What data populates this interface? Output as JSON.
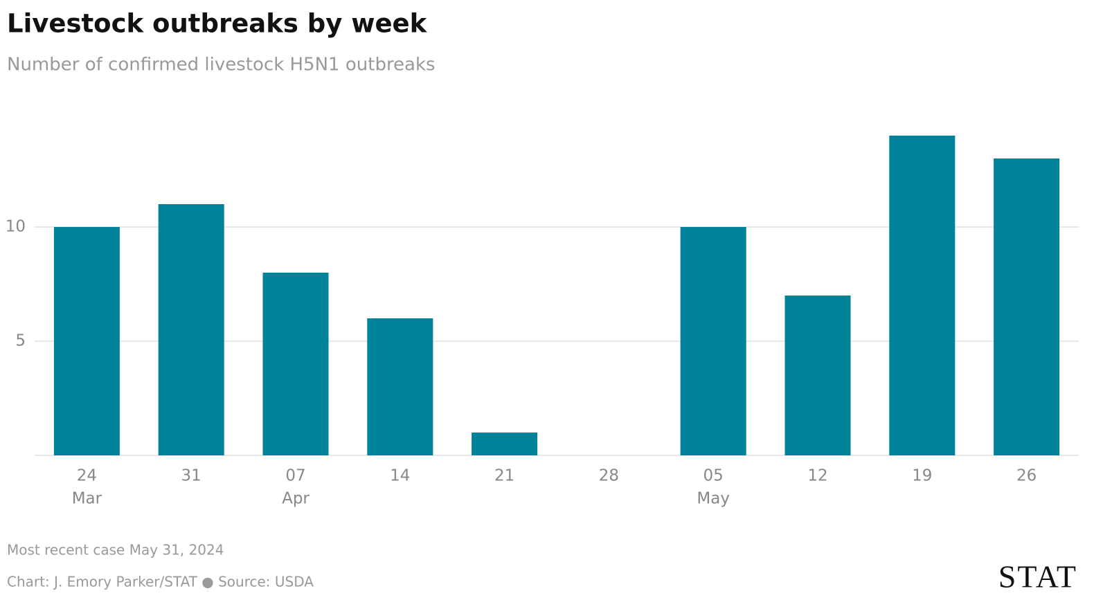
{
  "chart_data": {
    "type": "bar",
    "title": "Livestock outbreaks by week",
    "subtitle": "Number of confirmed livestock H5N1 outbreaks",
    "categories": [
      "24",
      "31",
      "07",
      "14",
      "21",
      "28",
      "05",
      "12",
      "19",
      "26"
    ],
    "month_labels": [
      "Mar",
      null,
      "Apr",
      null,
      null,
      null,
      "May",
      null,
      null,
      null
    ],
    "values": [
      10,
      11,
      8,
      6,
      1,
      0,
      10,
      7,
      14,
      13
    ],
    "color": "#008299",
    "ylim": [
      0,
      16
    ],
    "yticks": [
      5,
      10
    ],
    "grid": true,
    "note": "Most recent case May 31, 2024",
    "credit": "Chart: J. Emory Parker/STAT ● Source: USDA",
    "logo": "STAT"
  }
}
